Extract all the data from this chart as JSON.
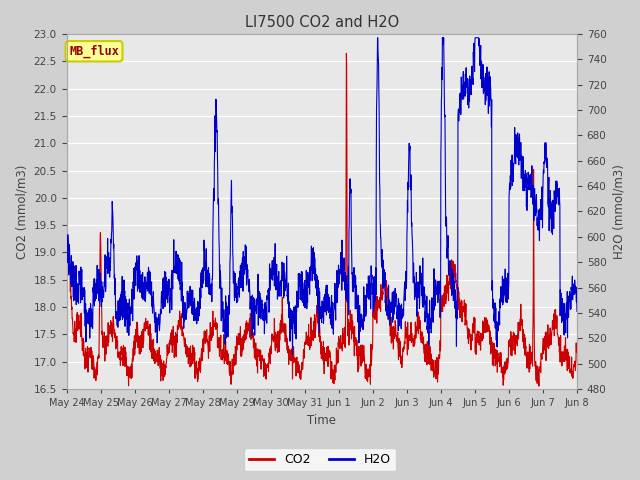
{
  "title": "LI7500 CO2 and H2O",
  "xlabel": "Time",
  "ylabel_left": "CO2 (mmol/m3)",
  "ylabel_right": "H2O (mmol/m3)",
  "ylim_left": [
    16.5,
    23.0
  ],
  "ylim_right": [
    480,
    760
  ],
  "yticks_left": [
    16.5,
    17.0,
    17.5,
    18.0,
    18.5,
    19.0,
    19.5,
    20.0,
    20.5,
    21.0,
    21.5,
    22.0,
    22.5,
    23.0
  ],
  "yticks_right": [
    480,
    500,
    520,
    540,
    560,
    580,
    600,
    620,
    640,
    660,
    680,
    700,
    720,
    740,
    760
  ],
  "co2_color": "#cc0000",
  "h2o_color": "#0000cc",
  "fig_facecolor": "#d0d0d0",
  "ax_facecolor": "#e8e8e8",
  "grid_color": "#ffffff",
  "annotation_text": "MB_flux",
  "annotation_bg": "#ffff99",
  "annotation_border": "#cccc00",
  "annotation_text_color": "#990000",
  "legend_co2": "CO2",
  "legend_h2o": "H2O",
  "xtick_labels": [
    "May 24",
    "May 25",
    "May 26",
    "May 27",
    "May 28",
    "May 29",
    "May 30",
    "May 31",
    "Jun 1",
    "Jun 2",
    "Jun 3",
    "Jun 4",
    "Jun 5",
    "Jun 6",
    "Jun 7",
    "Jun 8"
  ],
  "num_points": 2000
}
